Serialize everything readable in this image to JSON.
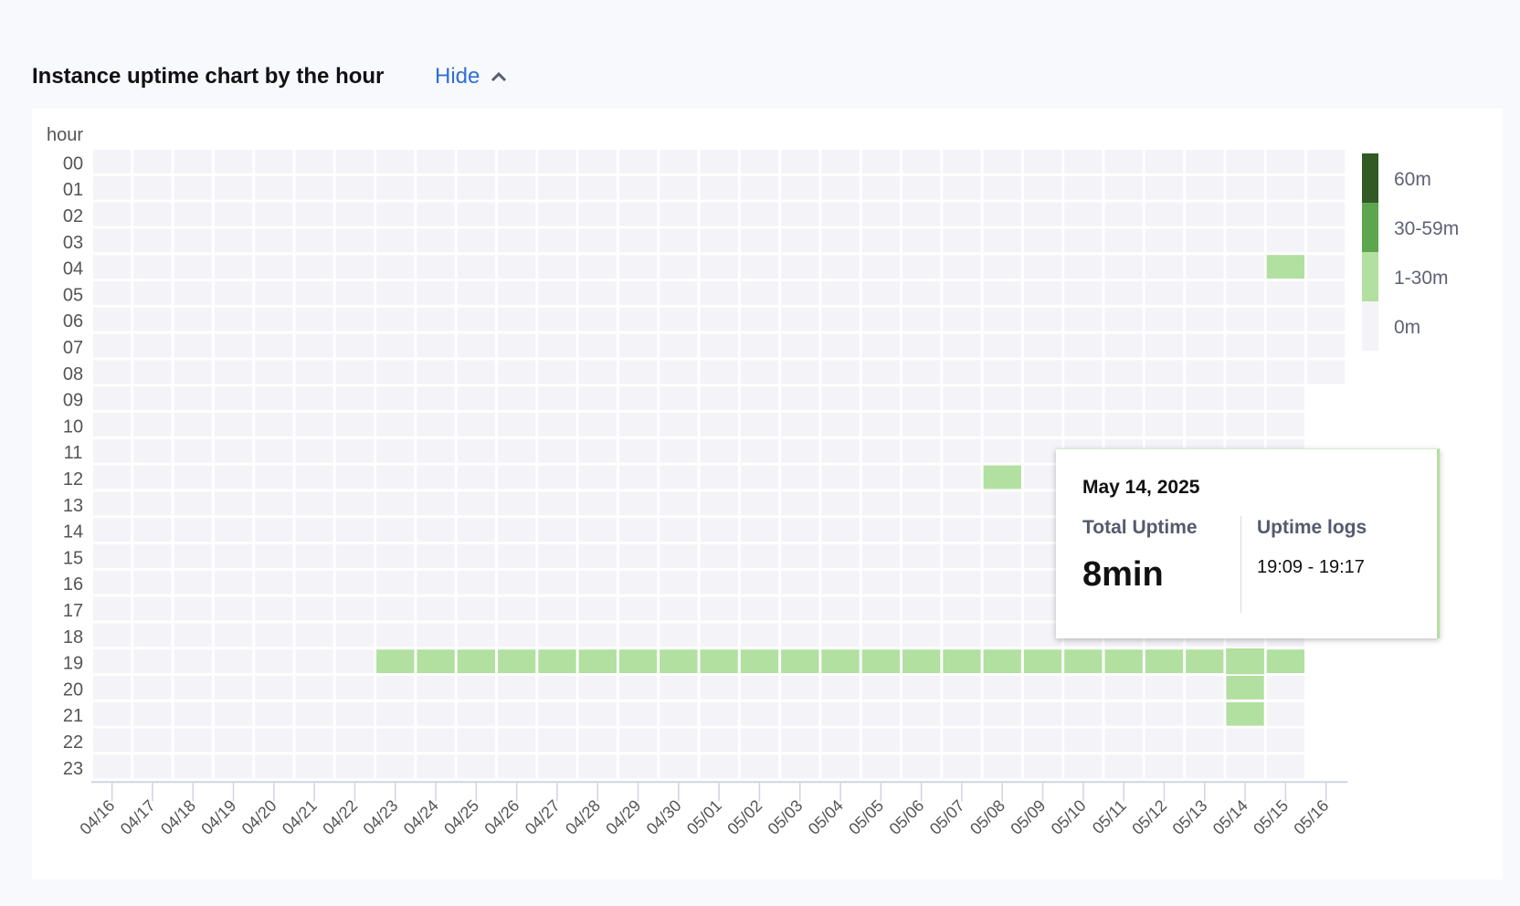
{
  "header": {
    "title": "Instance uptime chart by the hour",
    "toggle_label": "Hide",
    "toggle_icon": "chevron-up-icon"
  },
  "chart_data": {
    "type": "heatmap",
    "ylabel": "hour",
    "x_categories": [
      "04/16",
      "04/17",
      "04/18",
      "04/19",
      "04/20",
      "04/21",
      "04/22",
      "04/23",
      "04/24",
      "04/25",
      "04/26",
      "04/27",
      "04/28",
      "04/29",
      "04/30",
      "05/01",
      "05/02",
      "05/03",
      "05/04",
      "05/05",
      "05/06",
      "05/07",
      "05/08",
      "05/09",
      "05/10",
      "05/11",
      "05/12",
      "05/13",
      "05/14",
      "05/15",
      "05/16"
    ],
    "y_categories": [
      "00",
      "01",
      "02",
      "03",
      "04",
      "05",
      "06",
      "07",
      "08",
      "09",
      "10",
      "11",
      "12",
      "13",
      "14",
      "15",
      "16",
      "17",
      "18",
      "19",
      "20",
      "21",
      "22",
      "23"
    ],
    "last_day_hours_shown": 9,
    "legend": [
      {
        "label": "60m",
        "color": "#315a25"
      },
      {
        "label": "30-59m",
        "color": "#5ea64e"
      },
      {
        "label": "1-30m",
        "color": "#b1e0a0"
      },
      {
        "label": "0m",
        "color": "#f3f3f8"
      }
    ],
    "default_level": "0m",
    "active_cells": [
      {
        "date": "05/15",
        "hour": "04",
        "level": "1-30m"
      },
      {
        "date": "05/08",
        "hour": "12",
        "level": "1-30m"
      },
      {
        "date": "04/23",
        "hour": "19",
        "level": "1-30m"
      },
      {
        "date": "04/24",
        "hour": "19",
        "level": "1-30m"
      },
      {
        "date": "04/25",
        "hour": "19",
        "level": "1-30m"
      },
      {
        "date": "04/26",
        "hour": "19",
        "level": "1-30m"
      },
      {
        "date": "04/27",
        "hour": "19",
        "level": "1-30m"
      },
      {
        "date": "04/28",
        "hour": "19",
        "level": "1-30m"
      },
      {
        "date": "04/29",
        "hour": "19",
        "level": "1-30m"
      },
      {
        "date": "04/30",
        "hour": "19",
        "level": "1-30m"
      },
      {
        "date": "05/01",
        "hour": "19",
        "level": "1-30m"
      },
      {
        "date": "05/02",
        "hour": "19",
        "level": "1-30m"
      },
      {
        "date": "05/03",
        "hour": "19",
        "level": "1-30m"
      },
      {
        "date": "05/04",
        "hour": "19",
        "level": "1-30m"
      },
      {
        "date": "05/05",
        "hour": "19",
        "level": "1-30m"
      },
      {
        "date": "05/06",
        "hour": "19",
        "level": "1-30m"
      },
      {
        "date": "05/07",
        "hour": "19",
        "level": "1-30m"
      },
      {
        "date": "05/08",
        "hour": "19",
        "level": "1-30m"
      },
      {
        "date": "05/09",
        "hour": "19",
        "level": "1-30m"
      },
      {
        "date": "05/10",
        "hour": "19",
        "level": "1-30m"
      },
      {
        "date": "05/11",
        "hour": "19",
        "level": "1-30m"
      },
      {
        "date": "05/12",
        "hour": "19",
        "level": "1-30m"
      },
      {
        "date": "05/13",
        "hour": "19",
        "level": "1-30m"
      },
      {
        "date": "05/14",
        "hour": "19",
        "level": "1-30m",
        "minutes": 8,
        "hovered": true
      },
      {
        "date": "05/15",
        "hour": "19",
        "level": "1-30m"
      },
      {
        "date": "05/14",
        "hour": "20",
        "level": "1-30m"
      },
      {
        "date": "05/14",
        "hour": "21",
        "level": "1-30m"
      }
    ]
  },
  "tooltip": {
    "date": "May 14, 2025",
    "total_label": "Total Uptime",
    "total_value": "8min",
    "logs_label": "Uptime logs",
    "logs": [
      "19:09 - 19:17"
    ]
  }
}
